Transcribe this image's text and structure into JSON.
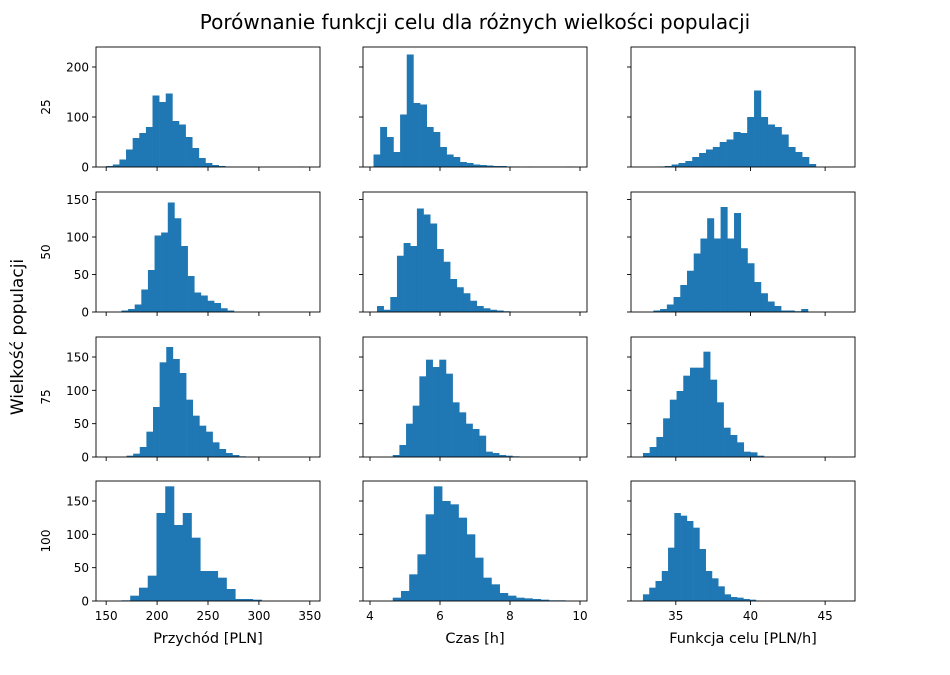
{
  "figure": {
    "title": "Porównanie funkcji celu dla różnych wielkości populacji",
    "ylabel": "Wielkość populacji",
    "bar_color": "#1f77b4"
  },
  "chart_data": [
    {
      "type": "bar",
      "panel": "25-revenue",
      "row_label": "25",
      "xlabel": "",
      "xlim": [
        140,
        360
      ],
      "ylim": [
        0,
        240
      ],
      "yticks": [
        0,
        100,
        200
      ],
      "xticks": [
        150,
        200,
        250,
        300,
        350
      ],
      "bin_start": 150,
      "bin_width": 6.5,
      "values": [
        2,
        5,
        15,
        35,
        58,
        68,
        80,
        143,
        130,
        147,
        92,
        85,
        60,
        38,
        18,
        8,
        4,
        2,
        1,
        0,
        0,
        0,
        0,
        0,
        0,
        0,
        0,
        0,
        0,
        1
      ]
    },
    {
      "type": "bar",
      "panel": "25-time",
      "row_label": "25",
      "xlabel": "",
      "xlim": [
        3.8,
        10.2
      ],
      "ylim": [
        0,
        240
      ],
      "yticks": [
        0,
        100,
        200
      ],
      "xticks": [
        4,
        6,
        8,
        10
      ],
      "bin_start": 4.1,
      "bin_width": 0.19,
      "values": [
        25,
        80,
        60,
        30,
        105,
        225,
        128,
        125,
        80,
        70,
        40,
        25,
        20,
        10,
        8,
        5,
        4,
        3,
        2,
        2,
        1,
        1,
        0,
        1,
        0,
        0,
        0,
        0,
        0,
        1
      ]
    },
    {
      "type": "bar",
      "panel": "25-objective",
      "row_label": "25",
      "xlabel": "",
      "xlim": [
        32,
        47
      ],
      "ylim": [
        0,
        240
      ],
      "yticks": [
        0,
        100,
        200
      ],
      "xticks": [
        35,
        40,
        45
      ],
      "bin_start": 33.8,
      "bin_width": 0.46,
      "values": [
        1,
        2,
        5,
        8,
        12,
        20,
        28,
        35,
        40,
        50,
        55,
        70,
        68,
        100,
        153,
        100,
        85,
        80,
        65,
        40,
        30,
        20,
        6
      ]
    },
    {
      "type": "bar",
      "panel": "50-revenue",
      "row_label": "50",
      "xlabel": "",
      "xlim": [
        140,
        360
      ],
      "ylim": [
        0,
        160
      ],
      "yticks": [
        0,
        50,
        100,
        150
      ],
      "xticks": [
        150,
        200,
        250,
        300,
        350
      ],
      "bin_start": 165,
      "bin_width": 6.5,
      "values": [
        2,
        4,
        10,
        30,
        56,
        102,
        106,
        146,
        125,
        88,
        48,
        26,
        22,
        15,
        12,
        5,
        2
      ]
    },
    {
      "type": "bar",
      "panel": "50-time",
      "row_label": "50",
      "xlabel": "",
      "xlim": [
        3.8,
        10.2
      ],
      "ylim": [
        0,
        160
      ],
      "yticks": [
        0,
        50,
        100,
        150
      ],
      "xticks": [
        4,
        6,
        8,
        10
      ],
      "bin_start": 4.2,
      "bin_width": 0.19,
      "values": [
        8,
        3,
        20,
        75,
        92,
        88,
        138,
        130,
        118,
        84,
        67,
        44,
        33,
        25,
        15,
        8,
        5,
        3,
        2,
        1
      ]
    },
    {
      "type": "bar",
      "panel": "50-objective",
      "row_label": "50",
      "xlabel": "",
      "xlim": [
        32,
        47
      ],
      "ylim": [
        0,
        160
      ],
      "yticks": [
        0,
        50,
        100,
        150
      ],
      "xticks": [
        35,
        40,
        45
      ],
      "bin_start": 33.5,
      "bin_width": 0.45,
      "values": [
        2,
        4,
        10,
        20,
        36,
        55,
        78,
        98,
        125,
        98,
        140,
        98,
        132,
        85,
        65,
        40,
        25,
        14,
        8,
        2,
        2,
        1,
        4
      ]
    },
    {
      "type": "bar",
      "panel": "75-revenue",
      "row_label": "75",
      "xlabel": "",
      "xlim": [
        140,
        360
      ],
      "ylim": [
        0,
        180
      ],
      "yticks": [
        0,
        50,
        100,
        150
      ],
      "xticks": [
        150,
        200,
        250,
        300,
        350
      ],
      "bin_start": 170,
      "bin_width": 6.5,
      "values": [
        2,
        5,
        15,
        38,
        75,
        142,
        165,
        147,
        126,
        86,
        62,
        47,
        38,
        22,
        12,
        6,
        3,
        1
      ]
    },
    {
      "type": "bar",
      "panel": "75-time",
      "row_label": "75",
      "xlabel": "",
      "xlim": [
        3.8,
        10.2
      ],
      "ylim": [
        0,
        180
      ],
      "yticks": [
        0,
        50,
        100,
        150
      ],
      "xticks": [
        4,
        6,
        8,
        10
      ],
      "bin_start": 4.65,
      "bin_width": 0.19,
      "values": [
        3,
        18,
        50,
        77,
        121,
        146,
        135,
        146,
        125,
        82,
        67,
        50,
        42,
        32,
        8,
        6,
        3,
        2,
        1
      ]
    },
    {
      "type": "bar",
      "panel": "75-objective",
      "row_label": "75",
      "xlabel": "",
      "xlim": [
        32,
        47
      ],
      "ylim": [
        0,
        180
      ],
      "yticks": [
        0,
        50,
        100,
        150
      ],
      "xticks": [
        35,
        40,
        45
      ],
      "bin_start": 32.8,
      "bin_width": 0.45,
      "values": [
        6,
        15,
        30,
        58,
        86,
        99,
        122,
        134,
        134,
        158,
        116,
        82,
        44,
        33,
        22,
        8,
        7,
        2
      ]
    },
    {
      "type": "bar",
      "panel": "100-revenue",
      "row_label": "100",
      "xlabel": "Przychód [PLN]",
      "xlim": [
        140,
        360
      ],
      "ylim": [
        0,
        180
      ],
      "yticks": [
        0,
        50,
        100,
        150
      ],
      "xticks": [
        150,
        200,
        250,
        300,
        350
      ],
      "bin_start": 165,
      "bin_width": 8.6,
      "values": [
        1,
        8,
        20,
        38,
        132,
        172,
        114,
        132,
        95,
        45,
        45,
        35,
        18,
        3,
        3,
        2
      ]
    },
    {
      "type": "bar",
      "panel": "100-time",
      "row_label": "100",
      "xlabel": "Czas [h]",
      "xlim": [
        3.8,
        10.2
      ],
      "ylim": [
        0,
        180
      ],
      "yticks": [
        0,
        50,
        100,
        150
      ],
      "xticks": [
        4,
        6,
        8,
        10
      ],
      "bin_start": 4.65,
      "bin_width": 0.235,
      "values": [
        5,
        15,
        40,
        70,
        130,
        172,
        150,
        145,
        125,
        100,
        65,
        35,
        25,
        12,
        8,
        5,
        4,
        3,
        2,
        1,
        1
      ]
    },
    {
      "type": "bar",
      "panel": "100-objective",
      "row_label": "100",
      "xlabel": "Funkcja celu [PLN/h]",
      "xlim": [
        32,
        47
      ],
      "ylim": [
        0,
        180
      ],
      "yticks": [
        0,
        50,
        100,
        150
      ],
      "xticks": [
        35,
        40,
        45
      ],
      "bin_start": 32.8,
      "bin_width": 0.42,
      "values": [
        10,
        20,
        30,
        45,
        80,
        132,
        128,
        120,
        110,
        78,
        45,
        34,
        22,
        10,
        6,
        5,
        3,
        2
      ]
    }
  ]
}
